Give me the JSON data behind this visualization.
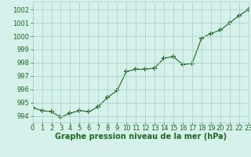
{
  "x": [
    0,
    1,
    2,
    3,
    4,
    5,
    6,
    7,
    8,
    9,
    10,
    11,
    12,
    13,
    14,
    15,
    16,
    17,
    18,
    19,
    20,
    21,
    22,
    23
  ],
  "y": [
    994.6,
    994.4,
    994.3,
    993.9,
    994.2,
    994.4,
    994.3,
    994.7,
    995.4,
    995.9,
    997.35,
    997.5,
    997.5,
    997.6,
    998.35,
    998.45,
    997.85,
    997.95,
    999.85,
    1000.2,
    1000.45,
    1001.0,
    1001.55,
    1002.0
  ],
  "line_color": "#1a6b1a",
  "marker": "+",
  "marker_size": 4,
  "marker_linewidth": 1.2,
  "bg_color": "#d6f0ec",
  "grid_color": "#aad4cc",
  "xlabel": "Graphe pression niveau de la mer (hPa)",
  "xlabel_color": "#1a6b1a",
  "xlabel_fontsize": 7,
  "tick_color": "#1a6b1a",
  "tick_fontsize": 6,
  "ylim": [
    993.5,
    1002.6
  ],
  "xlim": [
    0,
    23
  ],
  "yticks": [
    994,
    995,
    996,
    997,
    998,
    999,
    1000,
    1001,
    1002
  ],
  "xticks": [
    0,
    1,
    2,
    3,
    4,
    5,
    6,
    7,
    8,
    9,
    10,
    11,
    12,
    13,
    14,
    15,
    16,
    17,
    18,
    19,
    20,
    21,
    22,
    23
  ]
}
